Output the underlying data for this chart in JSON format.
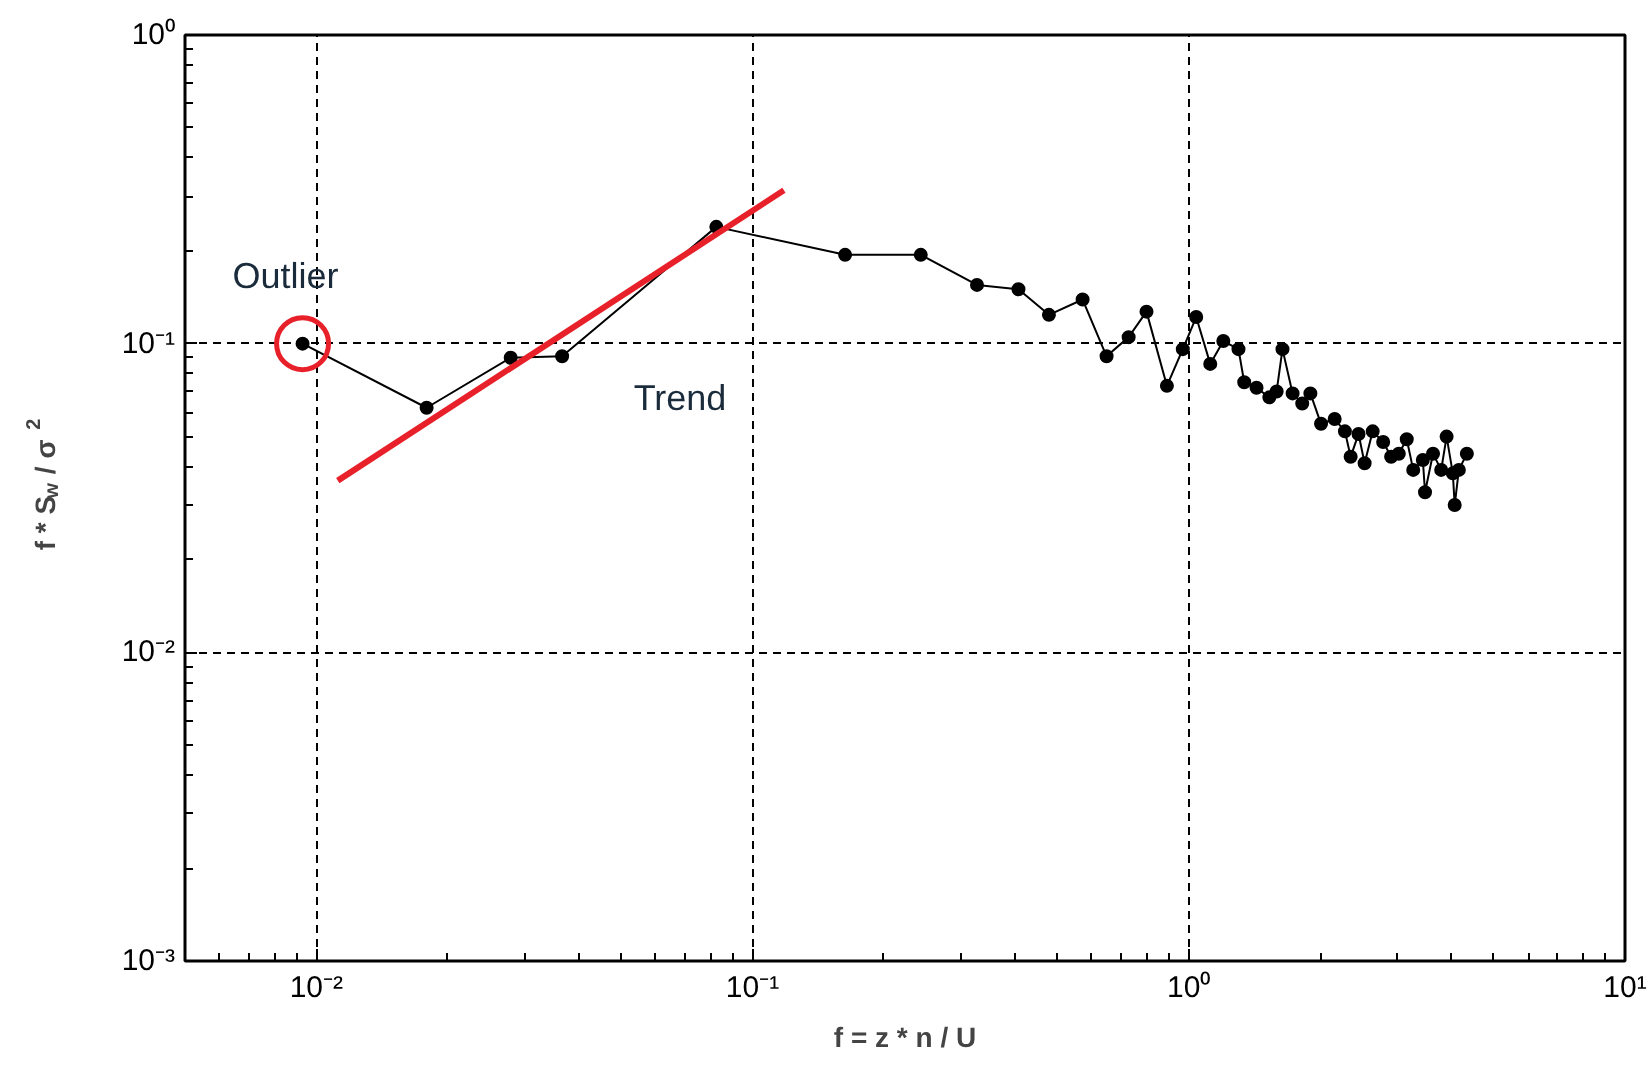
{
  "chart_data": {
    "type": "line",
    "xlabel": "f = z * n / U",
    "ylabel": "f * S$_{w}$ / σ$^{2}$",
    "log": "xy",
    "grid": true,
    "marker": "circle",
    "line_style": "solid",
    "xlim": [
      0.005,
      10
    ],
    "ylim": [
      0.001,
      1
    ],
    "xticks": [
      {
        "value": 0.01,
        "label": "10⁻²"
      },
      {
        "value": 0.1,
        "label": "10⁻¹"
      },
      {
        "value": 1,
        "label": "10⁰"
      },
      {
        "value": 10,
        "label": "10¹"
      }
    ],
    "yticks": [
      {
        "value": 0.001,
        "label": "10⁻³"
      },
      {
        "value": 0.01,
        "label": "10⁻²"
      },
      {
        "value": 0.1,
        "label": "10⁻¹"
      },
      {
        "value": 1,
        "label": "10⁰"
      }
    ],
    "annotations": [
      {
        "text": "Outlier",
        "x": 0.0093,
        "y": 0.1
      },
      {
        "text": "Trend",
        "x": 0.035,
        "y": 0.09
      }
    ],
    "series": [
      {
        "color": "#000000",
        "x": [
          0.0093,
          0.0179,
          0.0279,
          0.0366,
          0.0826,
          0.163,
          0.243,
          0.327,
          0.407,
          0.478,
          0.571,
          0.648,
          0.728,
          0.8,
          0.891,
          0.969,
          1.04,
          1.12,
          1.2,
          1.3,
          1.34,
          1.43,
          1.53,
          1.59,
          1.64,
          1.73,
          1.82,
          1.9,
          2.01,
          2.16,
          2.28,
          2.35,
          2.45,
          2.53,
          2.64,
          2.79,
          2.91,
          3.03,
          3.16,
          3.27,
          3.44,
          3.48,
          3.63,
          3.79,
          3.9,
          4.03,
          4.07,
          4.16,
          4.34
        ],
        "values": [
          0.1,
          0.062,
          0.09,
          0.091,
          0.239,
          0.194,
          0.194,
          0.155,
          0.15,
          0.124,
          0.139,
          0.091,
          0.105,
          0.127,
          0.073,
          0.096,
          0.122,
          0.086,
          0.102,
          0.096,
          0.075,
          0.072,
          0.067,
          0.07,
          0.096,
          0.069,
          0.064,
          0.069,
          0.055,
          0.057,
          0.052,
          0.043,
          0.051,
          0.041,
          0.052,
          0.048,
          0.043,
          0.044,
          0.049,
          0.039,
          0.042,
          0.033,
          0.044,
          0.039,
          0.05,
          0.038,
          0.03,
          0.039,
          0.044
        ]
      },
      {
        "type": "line",
        "color": "#e8202a",
        "marker": "none",
        "x": [
          0.0112,
          0.118
        ],
        "values": [
          0.036,
          0.314
        ]
      },
      {
        "type": "scatter",
        "color": "#e8202a",
        "marker": "circle",
        "x": [
          0.0093
        ],
        "values": [
          0.1
        ]
      }
    ]
  }
}
